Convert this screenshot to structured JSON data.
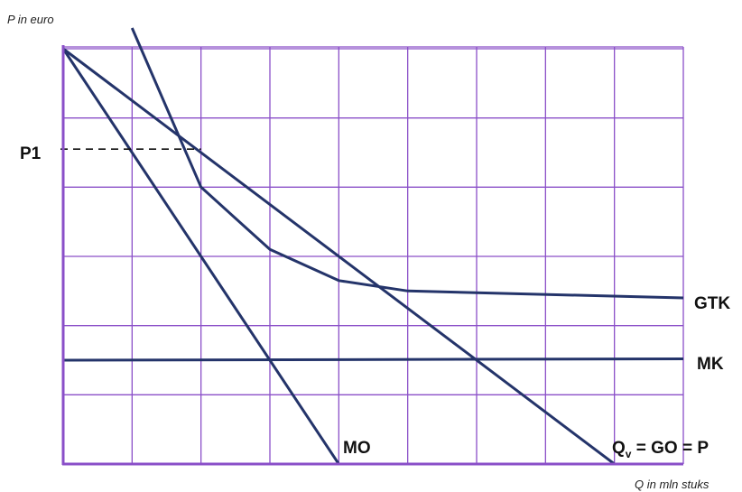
{
  "chart_data": {
    "type": "line",
    "ylabel": "P in euro",
    "xlabel": "Q in mln stuks",
    "xlim": [
      0,
      9
    ],
    "ylim": [
      0,
      6
    ],
    "grid": true,
    "p1": {
      "label": "P1",
      "x": 2,
      "y": 4.55
    },
    "series": [
      {
        "name": "Qv = GO = P",
        "label_main": "Q",
        "label_sub": "v",
        "label_rest": " = GO = P",
        "x": [
          0,
          8
        ],
        "y": [
          6,
          0
        ]
      },
      {
        "name": "MO",
        "label_main": "MO",
        "x": [
          0,
          4
        ],
        "y": [
          6,
          0
        ]
      },
      {
        "name": "GTK",
        "label_main": "GTK",
        "x": [
          1,
          2,
          3,
          4,
          5,
          9
        ],
        "y": [
          6.3,
          4.0,
          3.1,
          2.65,
          2.5,
          2.4
        ]
      },
      {
        "name": "MK",
        "label_main": "MK",
        "x": [
          0,
          9
        ],
        "y": [
          1.5,
          1.52
        ]
      }
    ]
  }
}
